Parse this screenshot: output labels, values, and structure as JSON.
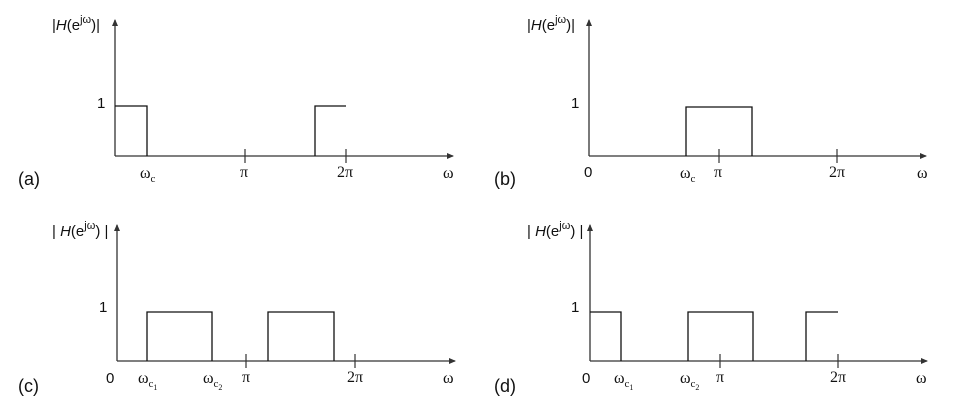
{
  "figure": {
    "panels": [
      {
        "id": "a",
        "label": "(a)",
        "y_label": "|H(e^{jω})|",
        "one_label": "1",
        "zero_label": "",
        "x_axis_label": "ω",
        "tick_labels": [
          "ωc",
          "π",
          "2π"
        ],
        "filter_type": "lowpass"
      },
      {
        "id": "b",
        "label": "(b)",
        "y_label": "|H(e^{jω})|",
        "one_label": "1",
        "zero_label": "0",
        "x_axis_label": "ω",
        "tick_labels": [
          "ωc",
          "π",
          "2π"
        ],
        "filter_type": "bandpass"
      },
      {
        "id": "c",
        "label": "(c)",
        "y_label": "|H(e^{jω})|",
        "one_label": "1",
        "zero_label": "0",
        "x_axis_label": "ω",
        "tick_labels": [
          "ωc1",
          "ωc2",
          "π",
          "2π"
        ],
        "filter_type": "bandpass-periodic"
      },
      {
        "id": "d",
        "label": "(d)",
        "y_label": "|H(e^{jω})|",
        "one_label": "1",
        "zero_label": "0",
        "x_axis_label": "ω",
        "tick_labels": [
          "ωc1",
          "ωc2",
          "π",
          "2π"
        ],
        "filter_type": "bandstop"
      }
    ]
  }
}
